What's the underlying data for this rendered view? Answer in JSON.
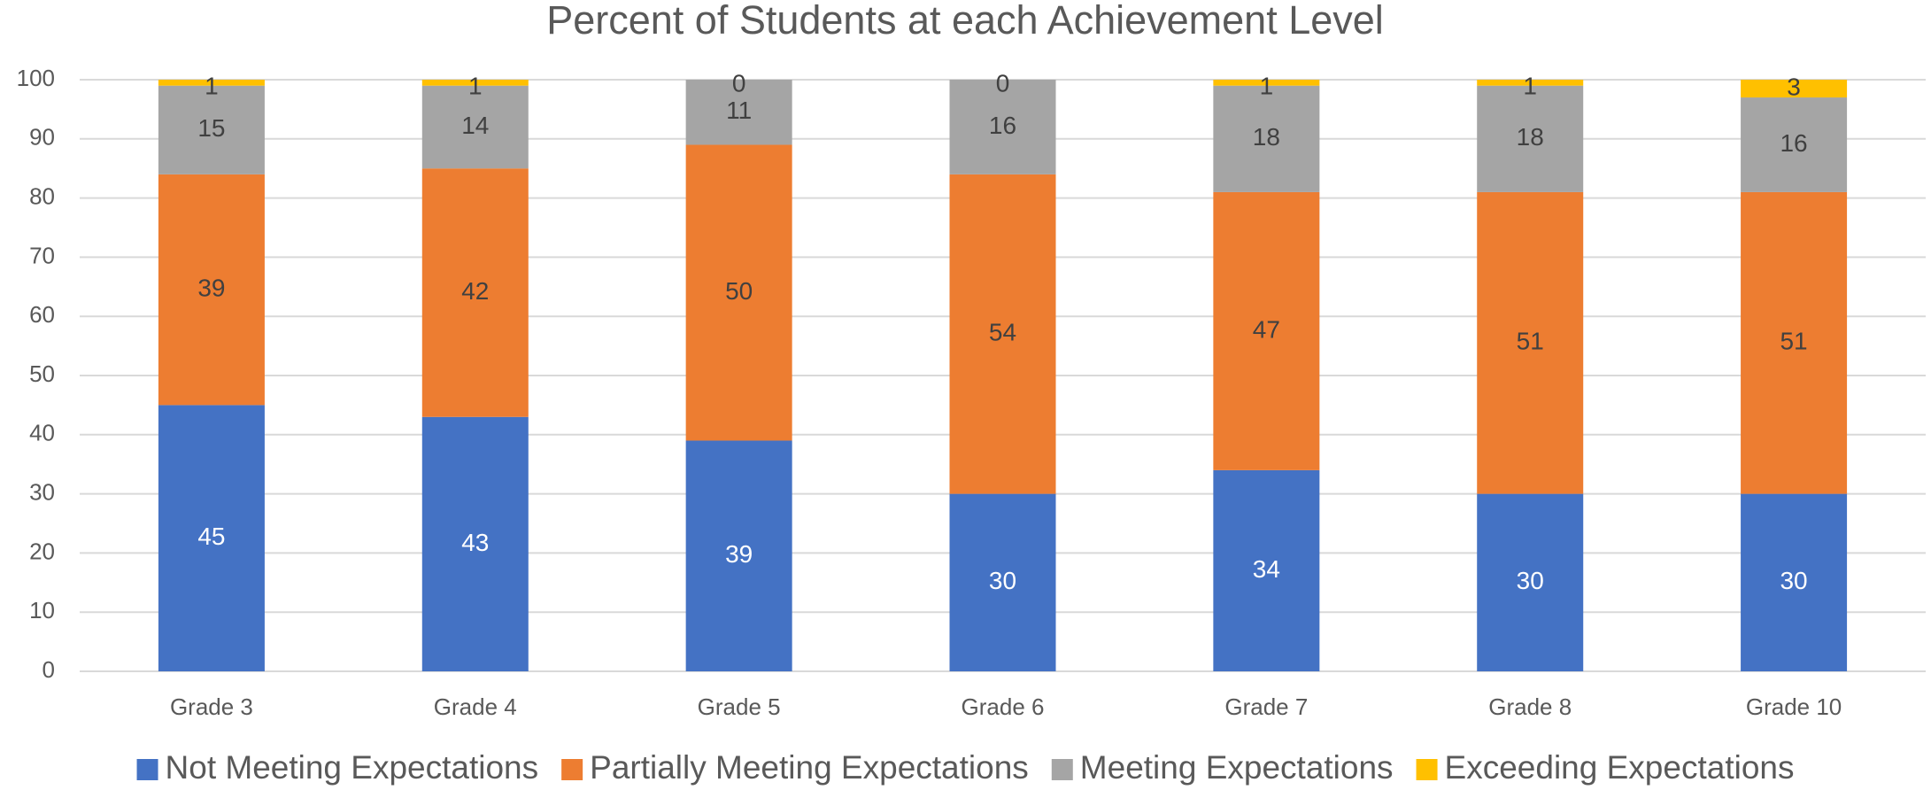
{
  "chart_data": {
    "type": "stacked_bar",
    "title": "Percent of Students at each Achievement Level",
    "categories": [
      "Grade 3",
      "Grade 4",
      "Grade 5",
      "Grade 6",
      "Grade 7",
      "Grade 8",
      "Grade 10"
    ],
    "series": [
      {
        "name": "Not Meeting Expectations",
        "color": "#4472c4",
        "values": [
          45,
          43,
          39,
          30,
          34,
          30,
          30
        ]
      },
      {
        "name": "Partially Meeting Expectations",
        "color": "#ed7d31",
        "values": [
          39,
          42,
          50,
          54,
          47,
          51,
          51
        ]
      },
      {
        "name": "Meeting Expectations",
        "color": "#a5a5a5",
        "values": [
          15,
          14,
          11,
          16,
          18,
          18,
          16
        ]
      },
      {
        "name": "Exceeding Expectations",
        "color": "#ffc000",
        "values": [
          1,
          1,
          0,
          0,
          1,
          1,
          3
        ]
      }
    ],
    "ylim": [
      0,
      100
    ],
    "yticks": [
      0,
      10,
      20,
      30,
      40,
      50,
      60,
      70,
      80,
      90,
      100
    ],
    "grid": true,
    "legend": "bottom"
  }
}
